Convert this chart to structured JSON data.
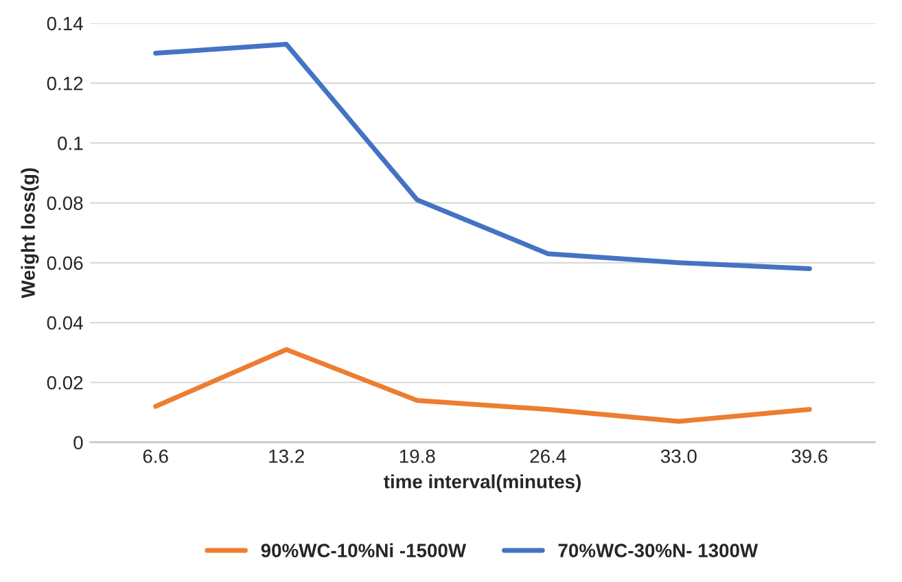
{
  "chart_data": {
    "type": "line",
    "xlabel": "time interval(minutes)",
    "ylabel": "Weight loss(g)",
    "categories": [
      "6.6",
      "13.2",
      "19.8",
      "26.4",
      "33.0",
      "39.6"
    ],
    "series": [
      {
        "name": "90%WC-10%Ni -1500W",
        "color": "#ed7d31",
        "values": [
          0.012,
          0.031,
          0.014,
          0.011,
          0.007,
          0.011
        ]
      },
      {
        "name": "70%WC-30%N- 1300W",
        "color": "#4472c4",
        "values": [
          0.13,
          0.133,
          0.081,
          0.063,
          0.06,
          0.058
        ]
      }
    ],
    "ylim": [
      0,
      0.14
    ],
    "yticks": [
      0,
      0.02,
      0.04,
      0.06,
      0.08,
      0.1,
      0.12,
      0.14
    ],
    "grid": "y",
    "legend": "bottom",
    "marker": "none",
    "line_style": "solid"
  }
}
